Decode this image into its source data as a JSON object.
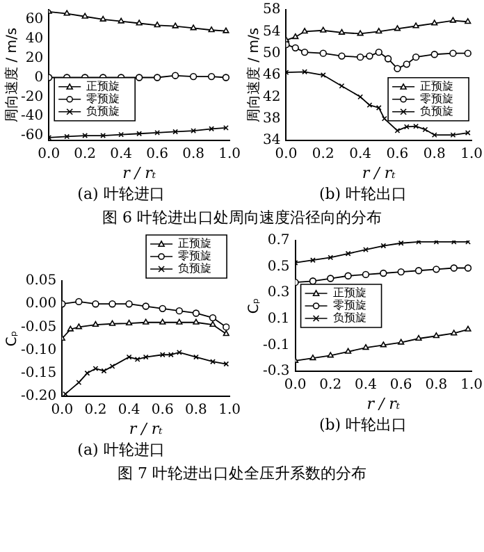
{
  "chart_data": [
    {
      "type": "line",
      "title": "(a)  叶轮进口",
      "xlabel": "r / rₜ",
      "ylabel": "周向速度 / m/s",
      "annotations": [
        "图 6  叶轮进出口处周向速度沿径向的分布"
      ],
      "xlim": [
        0,
        1
      ],
      "xticks": [
        {
          "value": 0,
          "label": "0.0"
        },
        {
          "value": 0.2,
          "label": "0.2"
        },
        {
          "value": 0.4,
          "label": "0.4"
        },
        {
          "value": 0.6,
          "label": "0.6"
        },
        {
          "value": 0.8,
          "label": "0.8"
        },
        {
          "value": 1,
          "label": "1.0"
        }
      ],
      "ylim": [
        -65,
        70
      ],
      "yticks": [
        -60,
        -40,
        -20,
        0,
        20,
        40,
        60
      ],
      "legend": "bottom left",
      "grid": false,
      "series": [
        {
          "name": "正预旋",
          "color": "#000000",
          "marker": "triangle",
          "x": [
            0,
            0.1,
            0.2,
            0.3,
            0.4,
            0.5,
            0.6,
            0.7,
            0.8,
            0.9,
            0.98
          ],
          "values": [
            68,
            66,
            63,
            60,
            58,
            56,
            54,
            53,
            51,
            49,
            48
          ]
        },
        {
          "name": "零预旋",
          "color": "#000000",
          "marker": "circle",
          "x": [
            0,
            0.1,
            0.2,
            0.3,
            0.4,
            0.5,
            0.6,
            0.7,
            0.8,
            0.9,
            0.98
          ],
          "values": [
            0,
            0,
            0,
            0,
            0,
            0,
            0,
            2,
            1,
            1,
            0
          ]
        },
        {
          "name": "负预旋",
          "color": "#000000",
          "marker": "cross",
          "x": [
            0,
            0.1,
            0.2,
            0.3,
            0.4,
            0.5,
            0.6,
            0.7,
            0.8,
            0.9,
            0.98
          ],
          "values": [
            -62,
            -61,
            -60,
            -60,
            -59,
            -58,
            -57,
            -56,
            -55,
            -53,
            -52
          ]
        }
      ]
    },
    {
      "type": "line",
      "title": "(b)  叶轮出口",
      "xlabel": "r / rₜ",
      "ylabel": "周向速度 / m/s",
      "xlim": [
        0,
        1
      ],
      "xticks": [
        {
          "value": 0,
          "label": "0.0"
        },
        {
          "value": 0.2,
          "label": "0.2"
        },
        {
          "value": 0.4,
          "label": "0.4"
        },
        {
          "value": 0.6,
          "label": "0.6"
        },
        {
          "value": 0.8,
          "label": "0.8"
        },
        {
          "value": 1,
          "label": "1.0"
        }
      ],
      "ylim": [
        34,
        58
      ],
      "yticks": [
        34,
        38,
        42,
        46,
        50,
        54,
        58
      ],
      "legend": "bottom right",
      "grid": false,
      "series": [
        {
          "name": "正预旋",
          "color": "#000000",
          "marker": "triangle",
          "x": [
            0,
            0.05,
            0.1,
            0.2,
            0.3,
            0.4,
            0.5,
            0.6,
            0.7,
            0.8,
            0.9,
            0.98
          ],
          "values": [
            52.4,
            53,
            54,
            54.2,
            53.8,
            53.6,
            54,
            54.5,
            55,
            55.5,
            56,
            55.8
          ]
        },
        {
          "name": "零预旋",
          "color": "#000000",
          "marker": "circle",
          "x": [
            0,
            0.05,
            0.1,
            0.2,
            0.3,
            0.4,
            0.45,
            0.5,
            0.55,
            0.6,
            0.65,
            0.7,
            0.8,
            0.9,
            0.98
          ],
          "values": [
            51.6,
            51,
            50.2,
            50,
            49.5,
            49.3,
            49.5,
            50.2,
            49,
            47.2,
            48,
            49.3,
            49.8,
            50,
            50
          ]
        },
        {
          "name": "负预旋",
          "color": "#000000",
          "marker": "cross",
          "x": [
            0,
            0.1,
            0.2,
            0.3,
            0.4,
            0.45,
            0.5,
            0.53,
            0.6,
            0.65,
            0.7,
            0.75,
            0.8,
            0.9,
            0.98
          ],
          "values": [
            46.5,
            46.6,
            46,
            44,
            42,
            40.5,
            40,
            38,
            35.8,
            36.5,
            36.6,
            36,
            35,
            35,
            35.4
          ]
        }
      ]
    },
    {
      "type": "line",
      "title": "(a)  叶轮进口",
      "xlabel": "r / rₜ",
      "ylabel": "Cₚ",
      "annotations": [
        "图 7  叶轮进出口处全压升系数的分布"
      ],
      "xlim": [
        0,
        1
      ],
      "xticks": [
        {
          "value": 0,
          "label": "0.0"
        },
        {
          "value": 0.2,
          "label": "0.2"
        },
        {
          "value": 0.4,
          "label": "0.4"
        },
        {
          "value": 0.6,
          "label": "0.6"
        },
        {
          "value": 0.8,
          "label": "0.8"
        },
        {
          "value": 1,
          "label": "1.0"
        }
      ],
      "ylim": [
        -0.2,
        0.05
      ],
      "yticks": [
        {
          "value": -0.2,
          "label": "-0.20"
        },
        -0.15,
        {
          "value": -0.1,
          "label": "-0.10"
        },
        -0.05,
        {
          "value": 0,
          "label": "0.00"
        },
        0.05
      ],
      "legend": "top right",
      "grid": false,
      "series": [
        {
          "name": "正预旋",
          "color": "#000000",
          "marker": "triangle",
          "x": [
            0,
            0.05,
            0.1,
            0.2,
            0.3,
            0.4,
            0.5,
            0.6,
            0.7,
            0.8,
            0.9,
            0.98
          ],
          "values": [
            -0.075,
            -0.055,
            -0.05,
            -0.045,
            -0.043,
            -0.042,
            -0.04,
            -0.04,
            -0.04,
            -0.04,
            -0.045,
            -0.065
          ]
        },
        {
          "name": "零预旋",
          "color": "#000000",
          "marker": "circle",
          "x": [
            0,
            0.1,
            0.2,
            0.3,
            0.4,
            0.5,
            0.6,
            0.7,
            0.8,
            0.9,
            0.98
          ],
          "values": [
            0,
            0.005,
            0,
            0,
            0,
            -0.005,
            -0.01,
            -0.015,
            -0.02,
            -0.03,
            -0.05
          ]
        },
        {
          "name": "负预旋",
          "color": "#000000",
          "marker": "cross",
          "x": [
            0.02,
            0.1,
            0.15,
            0.2,
            0.25,
            0.3,
            0.4,
            0.45,
            0.5,
            0.6,
            0.65,
            0.7,
            0.8,
            0.9,
            0.98
          ],
          "values": [
            -0.195,
            -0.17,
            -0.15,
            -0.14,
            -0.145,
            -0.135,
            -0.115,
            -0.12,
            -0.115,
            -0.11,
            -0.11,
            -0.105,
            -0.115,
            -0.125,
            -0.13
          ]
        }
      ]
    },
    {
      "type": "line",
      "title": "(b)  叶轮出口",
      "xlabel": "r / rₜ",
      "ylabel": "Cₚ",
      "xlim": [
        0,
        1
      ],
      "xticks": [
        {
          "value": 0,
          "label": "0.0"
        },
        {
          "value": 0.2,
          "label": "0.2"
        },
        {
          "value": 0.4,
          "label": "0.4"
        },
        {
          "value": 0.6,
          "label": "0.6"
        },
        {
          "value": 0.8,
          "label": "0.8"
        },
        {
          "value": 1,
          "label": "1.0"
        }
      ],
      "ylim": [
        -0.3,
        0.7
      ],
      "yticks": [
        -0.3,
        -0.1,
        0.1,
        0.3,
        0.5,
        0.7
      ],
      "legend": "left",
      "grid": false,
      "series": [
        {
          "name": "正预旋",
          "color": "#000000",
          "marker": "triangle",
          "x": [
            0,
            0.1,
            0.2,
            0.3,
            0.4,
            0.5,
            0.6,
            0.7,
            0.8,
            0.9,
            0.98
          ],
          "values": [
            -0.22,
            -0.2,
            -0.18,
            -0.15,
            -0.12,
            -0.1,
            -0.08,
            -0.05,
            -0.03,
            -0.01,
            0.02
          ]
        },
        {
          "name": "零预旋",
          "color": "#000000",
          "marker": "circle",
          "x": [
            0,
            0.1,
            0.2,
            0.3,
            0.4,
            0.5,
            0.6,
            0.7,
            0.8,
            0.9,
            0.98
          ],
          "values": [
            0.38,
            0.39,
            0.41,
            0.43,
            0.44,
            0.45,
            0.46,
            0.47,
            0.48,
            0.49,
            0.49
          ]
        },
        {
          "name": "负预旋",
          "color": "#000000",
          "marker": "cross",
          "x": [
            0,
            0.1,
            0.2,
            0.3,
            0.4,
            0.5,
            0.6,
            0.7,
            0.8,
            0.9,
            0.98
          ],
          "values": [
            0.53,
            0.55,
            0.57,
            0.6,
            0.63,
            0.66,
            0.68,
            0.69,
            0.69,
            0.69,
            0.69
          ]
        }
      ]
    }
  ]
}
